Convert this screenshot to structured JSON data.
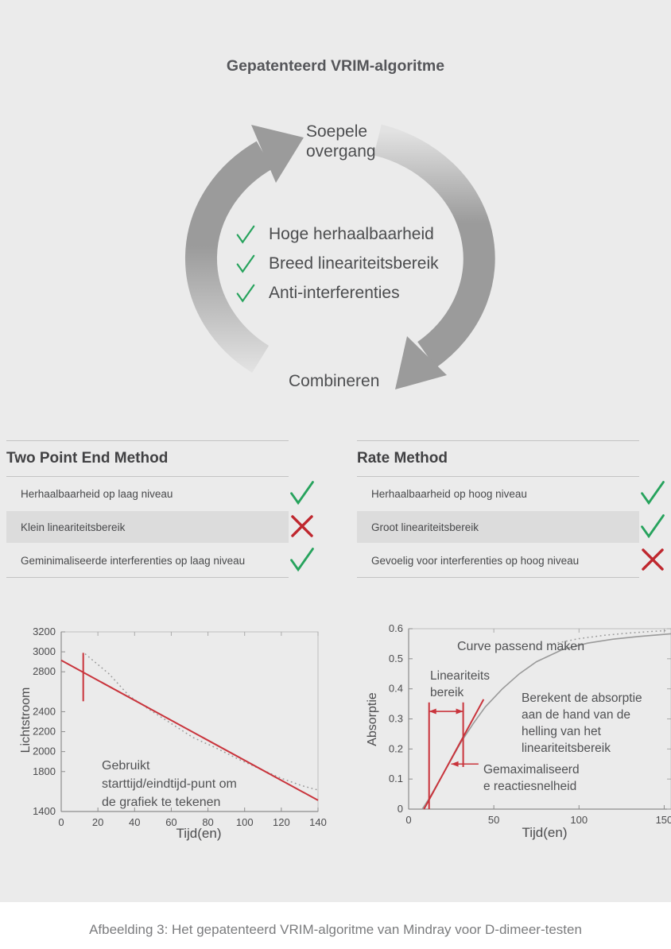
{
  "page": {
    "title": "Gepatenteerd VRIM-algoritme",
    "caption": "Afbeelding 3: Het gepatenteerd VRIM-algoritme van Mindray voor D-dimeer-testen"
  },
  "cycle": {
    "top_label": "Soepele\novergang",
    "bottom_label": "Combineren",
    "items": [
      {
        "icon": "check",
        "label": "Hoge herhaalbaarheid"
      },
      {
        "icon": "check",
        "label": "Breed lineariteitsbereik"
      },
      {
        "icon": "check",
        "label": "Anti-interferenties"
      }
    ]
  },
  "tables": [
    {
      "title": "Two Point End Method",
      "rows": [
        {
          "label": "Herhaalbaarheid op laag niveau",
          "mark": "check",
          "shaded": false
        },
        {
          "label": "Klein lineariteitsbereik",
          "mark": "cross",
          "shaded": true
        },
        {
          "label": "Geminimaliseerde interferenties op laag niveau",
          "mark": "check",
          "shaded": false
        }
      ]
    },
    {
      "title": "Rate Method",
      "rows": [
        {
          "label": "Herhaalbaarheid op hoog niveau",
          "mark": "check",
          "shaded": false
        },
        {
          "label": "Groot lineariteitsbereik",
          "mark": "check",
          "shaded": true
        },
        {
          "label": "Gevoelig voor interferenties op hoog niveau",
          "mark": "cross",
          "shaded": false
        }
      ]
    }
  ],
  "icons": {
    "check": "check-icon",
    "cross": "cross-icon"
  },
  "colors": {
    "panel_bg": "#ebebeb",
    "row_shade": "#dcdcdc",
    "arrow_gray": "#9b9b9b",
    "check_green": "#27a35d",
    "cross_red": "#bf272e",
    "accent_red": "#c9343c"
  },
  "chart_data": [
    {
      "type": "line",
      "title": "",
      "xlabel": "Tijd(en)",
      "ylabel": "Lichtstroom",
      "xlim": [
        0,
        140
      ],
      "ylim": [
        1400,
        3200
      ],
      "xticks": [
        0,
        20,
        40,
        60,
        80,
        100,
        120,
        140
      ],
      "ytick_labels": [
        3200,
        3000,
        2800,
        2400,
        2200,
        2000,
        1800,
        1400
      ],
      "annotation": "Gebruikt\nstarttijd/eindtijd-punt om\nde grafiek te tekenen",
      "series": [
        {
          "name": "gemeten-curve",
          "color": "gray",
          "style": "dotted",
          "width": 1.5,
          "points": [
            [
              13,
              2980
            ],
            [
              26,
              2780
            ],
            [
              37,
              2560
            ],
            [
              49,
              2410
            ],
            [
              61,
              2270
            ],
            [
              72,
              2140
            ],
            [
              84,
              2040
            ],
            [
              96,
              1930
            ],
            [
              108,
              1830
            ],
            [
              119,
              1740
            ],
            [
              131,
              1660
            ],
            [
              140,
              1615
            ]
          ]
        },
        {
          "name": "twee-punts-lijn",
          "color": "red",
          "style": "solid",
          "width": 2,
          "points": [
            [
              0,
              2915
            ],
            [
              140,
              1512
            ]
          ]
        },
        {
          "name": "starttijd-marker",
          "color": "red",
          "style": "solid",
          "width": 2,
          "points": [
            [
              12,
              2505
            ],
            [
              12,
              2990
            ]
          ]
        }
      ]
    },
    {
      "type": "line",
      "title": "",
      "xlabel": "Tijd(en)",
      "ylabel": "Absorptie",
      "xlim": [
        0,
        154
      ],
      "ylim": [
        0,
        0.6
      ],
      "xticks": [
        0,
        50,
        100,
        150
      ],
      "yticks": [
        0,
        0.1,
        0.2,
        0.3,
        0.4,
        0.5,
        0.6
      ],
      "annotations": {
        "curve_fit": "Curve passend maken",
        "linearity_range": "Lineariteits\nbereik",
        "slope_calc": "Berekent de absorptie\naan de hand van de\nhelling van het\nlineariteitsbereik",
        "max_rate": "Gemaximaliseerd\ne reactiesnelheid"
      },
      "series": [
        {
          "name": "reactie-curve",
          "color": "gray",
          "style": "solid",
          "width": 1.6,
          "points": [
            [
              8,
              0
            ],
            [
              12,
              0.035
            ],
            [
              16,
              0.075
            ],
            [
              20,
              0.115
            ],
            [
              25,
              0.165
            ],
            [
              31,
              0.225
            ],
            [
              38,
              0.285
            ],
            [
              45,
              0.34
            ],
            [
              55,
              0.4
            ],
            [
              65,
              0.45
            ],
            [
              75,
              0.49
            ],
            [
              90,
              0.53
            ],
            [
              105,
              0.552
            ],
            [
              120,
              0.565
            ],
            [
              135,
              0.574
            ],
            [
              154,
              0.583
            ]
          ]
        },
        {
          "name": "gefitte-curve",
          "color": "gray",
          "style": "dotted",
          "width": 1.5,
          "points": [
            [
              85,
              0.55
            ],
            [
              100,
              0.567
            ],
            [
              115,
              0.578
            ],
            [
              128,
              0.585
            ],
            [
              140,
              0.59
            ],
            [
              152,
              0.594
            ]
          ]
        },
        {
          "name": "helling-lijn",
          "color": "red",
          "style": "solid",
          "width": 2,
          "points": [
            [
              9,
              0
            ],
            [
              44,
              0.365
            ]
          ]
        },
        {
          "name": "bereik-lijn-start",
          "color": "red",
          "style": "solid",
          "width": 2,
          "points": [
            [
              12,
              0
            ],
            [
              12,
              0.355
            ]
          ]
        },
        {
          "name": "bereik-lijn-eind",
          "color": "red",
          "style": "solid",
          "width": 2,
          "points": [
            [
              32,
              0.14
            ],
            [
              32,
              0.355
            ]
          ]
        }
      ],
      "arrows": [
        {
          "name": "bereik-arrow",
          "y": 0.325,
          "x1": 12,
          "x2": 32,
          "heads": "both"
        },
        {
          "name": "snelheid-arrow",
          "y": 0.15,
          "x1": 41,
          "x2": 25,
          "heads": "end"
        }
      ]
    }
  ]
}
